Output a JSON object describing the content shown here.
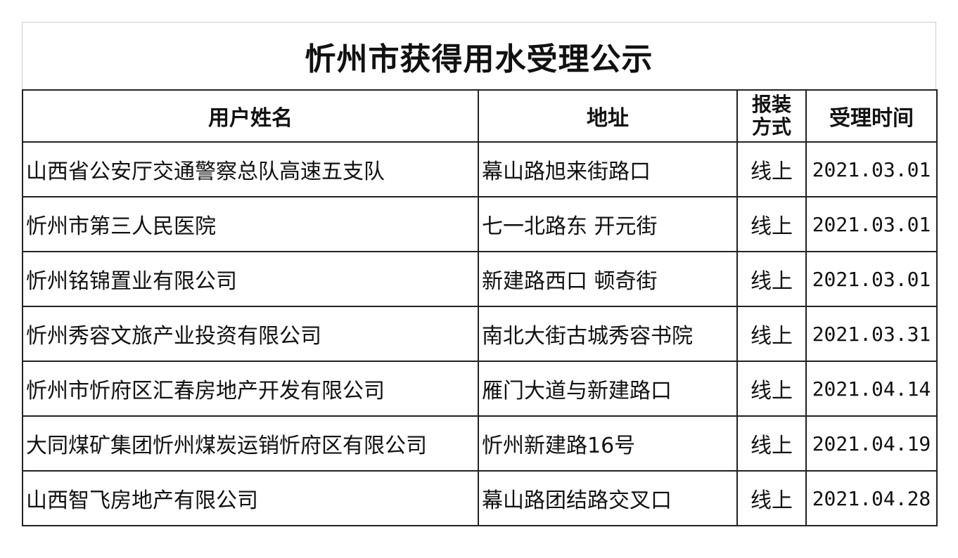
{
  "title": "忻州市获得用水受理公示",
  "headers": {
    "name": "用户姓名",
    "address": "地址",
    "method_line1": "报装",
    "method_line2": "方式",
    "date": "受理时间"
  },
  "rows": [
    {
      "name": "山西省公安厅交通警察总队高速五支队",
      "address": "幕山路旭来街路口",
      "method": "线上",
      "date": "2021.03.01"
    },
    {
      "name": "忻州市第三人民医院",
      "address": "七一北路东  开元街",
      "method": "线上",
      "date": "2021.03.01"
    },
    {
      "name": "忻州铭锦置业有限公司",
      "address": "新建路西口  顿奇街",
      "method": "线上",
      "date": "2021.03.01"
    },
    {
      "name": "忻州秀容文旅产业投资有限公司",
      "address": "南北大街古城秀容书院",
      "method": "线上",
      "date": "2021.03.31"
    },
    {
      "name": "忻州市忻府区汇春房地产开发有限公司",
      "address": "雁门大道与新建路口",
      "method": "线上",
      "date": "2021.04.14"
    },
    {
      "name": "大同煤矿集团忻州煤炭运销忻府区有限公司",
      "address": "忻州新建路16号",
      "method": "线上",
      "date": "2021.04.19"
    },
    {
      "name": "山西智飞房地产有限公司",
      "address": "幕山路团结路交叉口",
      "method": "线上",
      "date": "2021.04.28"
    }
  ]
}
